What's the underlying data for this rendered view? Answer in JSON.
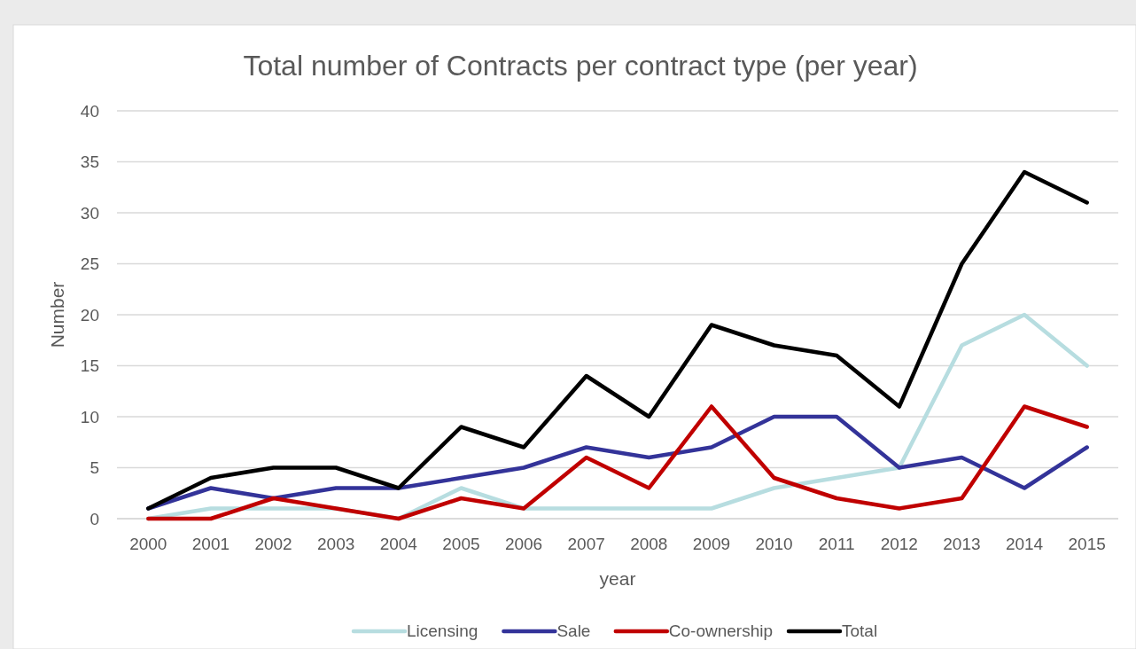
{
  "chart_data": {
    "type": "line",
    "title": "Total number of Contracts per contract type (per year)",
    "xlabel": "year",
    "ylabel": "Number",
    "categories": [
      "2000",
      "2001",
      "2002",
      "2003",
      "2004",
      "2005",
      "2006",
      "2007",
      "2008",
      "2009",
      "2010",
      "2011",
      "2012",
      "2013",
      "2014",
      "2015"
    ],
    "series": [
      {
        "name": "Licensing",
        "color": "#b7dde0",
        "values": [
          0,
          1,
          1,
          1,
          0,
          3,
          1,
          1,
          1,
          1,
          3,
          4,
          5,
          17,
          20,
          15
        ]
      },
      {
        "name": "Sale",
        "color": "#333399",
        "values": [
          1,
          3,
          2,
          3,
          3,
          4,
          5,
          7,
          6,
          7,
          10,
          10,
          5,
          6,
          3,
          7
        ]
      },
      {
        "name": "Co-ownership",
        "color": "#c00000",
        "values": [
          0,
          0,
          2,
          1,
          0,
          2,
          1,
          6,
          3,
          11,
          4,
          2,
          1,
          2,
          11,
          9
        ]
      },
      {
        "name": "Total",
        "color": "#000000",
        "values": [
          1,
          4,
          5,
          5,
          3,
          9,
          7,
          14,
          10,
          19,
          17,
          16,
          11,
          25,
          34,
          31
        ]
      }
    ],
    "ylim": [
      0,
      40
    ],
    "yticks": [
      0,
      5,
      10,
      15,
      20,
      25,
      30,
      35,
      40
    ],
    "grid": "y",
    "legend": "bottom",
    "marker": "none",
    "line_style": "solid"
  }
}
